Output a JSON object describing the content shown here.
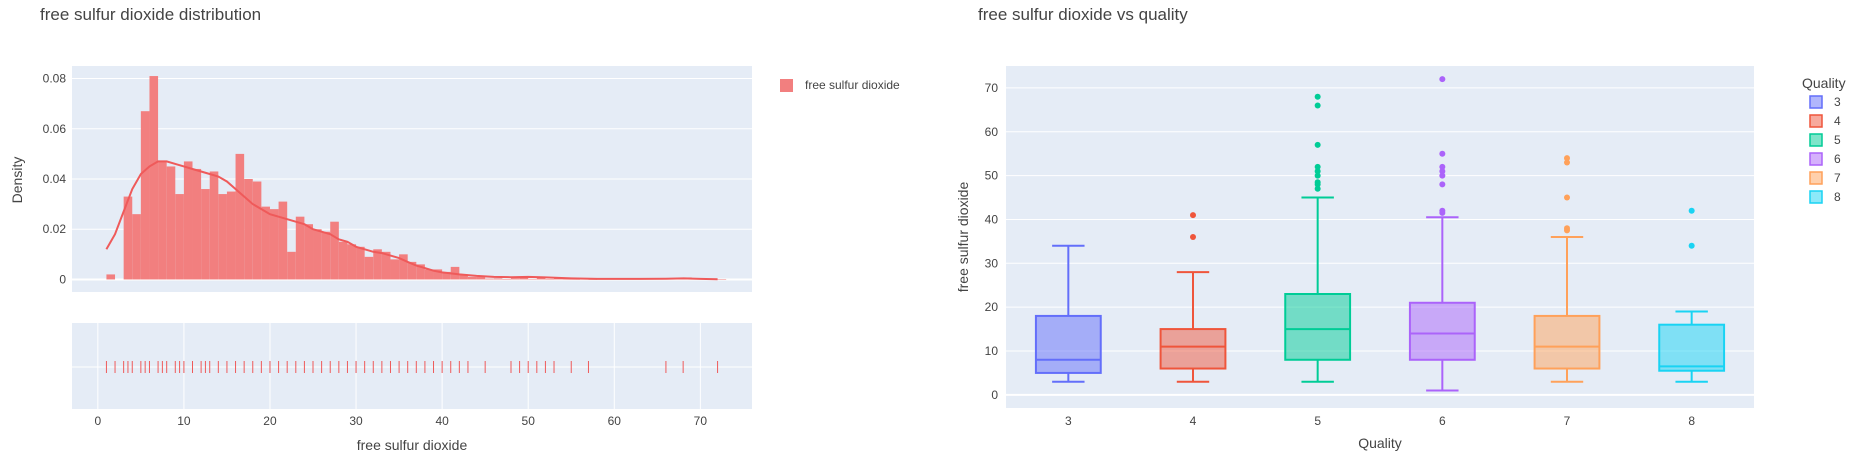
{
  "chart_data": [
    {
      "type": "histogram",
      "title": "free sulfur dioxide distribution",
      "xlabel": "free sulfur dioxide",
      "ylabel": "Density",
      "xlim": [
        -3,
        76
      ],
      "ylim": [
        -0.005,
        0.085
      ],
      "xticks": [
        "0",
        "10",
        "20",
        "30",
        "40",
        "50",
        "60",
        "70"
      ],
      "yticks": [
        "0",
        "0.02",
        "0.04",
        "0.06",
        "0.08"
      ],
      "legend": "top-right",
      "series": [
        {
          "name": "free sulfur dioxide",
          "color": "#f27f7f",
          "line_color": "#ef5a5a"
        }
      ],
      "bin_width": 1,
      "bins": [
        [
          1,
          0.002
        ],
        [
          3,
          0.033
        ],
        [
          4,
          0.026
        ],
        [
          5,
          0.067
        ],
        [
          6,
          0.081
        ],
        [
          7,
          0.047
        ],
        [
          8,
          0.045
        ],
        [
          9,
          0.034
        ],
        [
          10,
          0.047
        ],
        [
          11,
          0.044
        ],
        [
          12,
          0.036
        ],
        [
          13,
          0.043
        ],
        [
          14,
          0.034
        ],
        [
          15,
          0.035
        ],
        [
          16,
          0.05
        ],
        [
          17,
          0.04
        ],
        [
          18,
          0.039
        ],
        [
          19,
          0.029
        ],
        [
          20,
          0.028
        ],
        [
          21,
          0.031
        ],
        [
          22,
          0.011
        ],
        [
          23,
          0.025
        ],
        [
          24,
          0.022
        ],
        [
          25,
          0.02
        ],
        [
          26,
          0.019
        ],
        [
          27,
          0.023
        ],
        [
          28,
          0.015
        ],
        [
          29,
          0.014
        ],
        [
          30,
          0.013
        ],
        [
          31,
          0.009
        ],
        [
          32,
          0.012
        ],
        [
          33,
          0.011
        ],
        [
          34,
          0.008
        ],
        [
          35,
          0.01
        ],
        [
          36,
          0.007
        ],
        [
          37,
          0.006
        ],
        [
          38,
          0.004
        ],
        [
          39,
          0.004
        ],
        [
          40,
          0.003
        ],
        [
          41,
          0.005
        ],
        [
          42,
          0.002
        ],
        [
          43,
          0.001
        ],
        [
          44,
          0.001
        ],
        [
          45,
          0.0003
        ],
        [
          46,
          0.0004
        ],
        [
          47,
          0.0001
        ],
        [
          48,
          0.0005
        ],
        [
          49,
          0.001
        ],
        [
          50,
          0.0002
        ],
        [
          51,
          0.001
        ],
        [
          52,
          0.0001
        ],
        [
          53,
          0.0005
        ],
        [
          54,
          0.0001
        ],
        [
          55,
          0.0001
        ],
        [
          57,
          0.0001
        ],
        [
          66,
          0.0003
        ],
        [
          68,
          0.0008
        ],
        [
          72,
          0.0001
        ]
      ],
      "kde": [
        [
          1,
          0.012
        ],
        [
          2,
          0.018
        ],
        [
          3,
          0.027
        ],
        [
          4,
          0.036
        ],
        [
          5,
          0.042
        ],
        [
          6,
          0.045
        ],
        [
          7,
          0.047
        ],
        [
          8,
          0.047
        ],
        [
          9,
          0.046
        ],
        [
          10,
          0.045
        ],
        [
          11,
          0.044
        ],
        [
          12,
          0.043
        ],
        [
          13,
          0.042
        ],
        [
          14,
          0.041
        ],
        [
          15,
          0.039
        ],
        [
          16,
          0.036
        ],
        [
          17,
          0.033
        ],
        [
          18,
          0.03
        ],
        [
          19,
          0.028
        ],
        [
          20,
          0.026
        ],
        [
          21,
          0.025
        ],
        [
          22,
          0.024
        ],
        [
          23,
          0.023
        ],
        [
          24,
          0.022
        ],
        [
          25,
          0.02
        ],
        [
          26,
          0.019
        ],
        [
          27,
          0.018
        ],
        [
          28,
          0.016
        ],
        [
          29,
          0.015
        ],
        [
          30,
          0.013
        ],
        [
          31,
          0.012
        ],
        [
          32,
          0.011
        ],
        [
          33,
          0.0105
        ],
        [
          34,
          0.0095
        ],
        [
          35,
          0.0085
        ],
        [
          36,
          0.007
        ],
        [
          37,
          0.0055
        ],
        [
          38,
          0.0045
        ],
        [
          39,
          0.0035
        ],
        [
          40,
          0.0028
        ],
        [
          42,
          0.002
        ],
        [
          44,
          0.0014
        ],
        [
          46,
          0.001
        ],
        [
          48,
          0.0009
        ],
        [
          50,
          0.001
        ],
        [
          52,
          0.0008
        ],
        [
          55,
          0.0004
        ],
        [
          58,
          0.0002
        ],
        [
          60,
          0.0002
        ],
        [
          63,
          0.0002
        ],
        [
          66,
          0.0003
        ],
        [
          68,
          0.0004
        ],
        [
          70,
          0.0002
        ],
        [
          72,
          0.0001
        ]
      ],
      "rug": [
        1,
        2,
        3,
        3.5,
        4,
        5,
        5.5,
        6,
        7,
        7.5,
        8,
        9,
        9.5,
        10,
        11,
        12,
        12.5,
        13,
        14,
        15,
        16,
        17,
        18,
        19,
        20,
        21,
        22,
        23,
        24,
        25,
        26,
        27,
        28,
        29,
        30,
        31,
        32,
        33,
        34,
        35,
        36,
        37,
        38,
        39,
        40,
        41,
        42,
        43,
        45,
        48,
        49,
        50,
        51,
        52,
        53,
        55,
        57,
        66,
        68,
        72
      ]
    },
    {
      "type": "box",
      "title": "free sulfur dioxide vs quality",
      "xlabel": "Quality",
      "ylabel": "free sulfur dioxide",
      "ylim": [
        -3,
        75
      ],
      "yticks": [
        "0",
        "10",
        "20",
        "30",
        "40",
        "50",
        "60",
        "70"
      ],
      "legend_title": "Quality",
      "legend": "top-right",
      "categories": [
        "3",
        "4",
        "5",
        "6",
        "7",
        "8"
      ],
      "series": [
        {
          "name": "3",
          "color": "#636efa",
          "min": 3,
          "q1": 5,
          "median": 8,
          "q3": 18,
          "max": 34,
          "outliers": []
        },
        {
          "name": "4",
          "color": "#ef553b",
          "min": 3,
          "q1": 6,
          "median": 11,
          "q3": 15,
          "max": 28,
          "outliers": [
            36,
            41
          ]
        },
        {
          "name": "5",
          "color": "#00cc96",
          "min": 3,
          "q1": 8,
          "median": 15,
          "q3": 23,
          "max": 45,
          "outliers": [
            47,
            48,
            48.5,
            50,
            51,
            52,
            57,
            66,
            68
          ]
        },
        {
          "name": "6",
          "color": "#ab63fa",
          "min": 1,
          "q1": 8,
          "median": 14,
          "q3": 21,
          "max": 40.5,
          "outliers": [
            41.5,
            42,
            48,
            50,
            51,
            52,
            55,
            72
          ]
        },
        {
          "name": "7",
          "color": "#ffa15a",
          "min": 3,
          "q1": 6,
          "median": 11,
          "q3": 18,
          "max": 36,
          "outliers": [
            37.5,
            38,
            45,
            53,
            54
          ]
        },
        {
          "name": "8",
          "color": "#19d3f3",
          "min": 3,
          "q1": 5.5,
          "median": 6.5,
          "q3": 16,
          "max": 19,
          "outliers": [
            34,
            42
          ]
        }
      ]
    }
  ]
}
